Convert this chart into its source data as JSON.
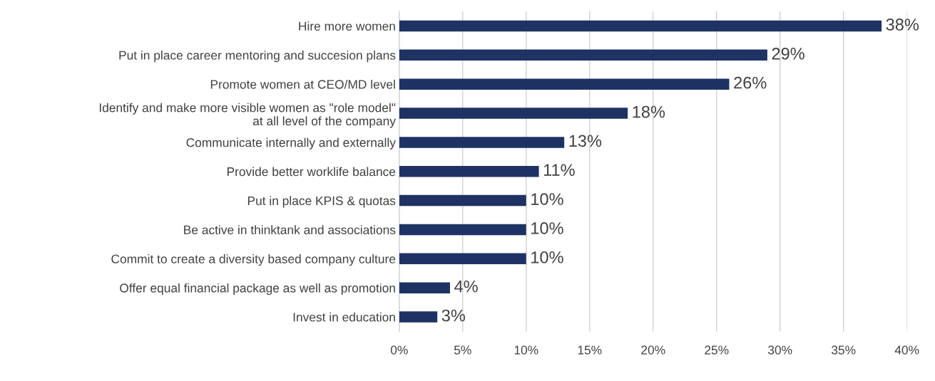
{
  "chart_data": {
    "type": "bar",
    "orientation": "horizontal",
    "categories": [
      "Hire more women",
      "Put in place career mentoring and succesion plans",
      "Promote women at CEO/MD level",
      "Identify and make more visible women as \"role model\"\nat all level of the company",
      "Communicate internally and externally",
      "Provide better worklife balance",
      "Put in place KPIS & quotas",
      "Be active in thinktank and associations",
      "Commit to create a diversity based company culture",
      "Offer equal financial package as well as promotion",
      "Invest in education"
    ],
    "values": [
      38,
      29,
      26,
      18,
      13,
      11,
      10,
      10,
      10,
      4,
      3
    ],
    "value_labels": [
      "38%",
      "29%",
      "26%",
      "18%",
      "13%",
      "11%",
      "10%",
      "10%",
      "10%",
      "4%",
      "3%"
    ],
    "color": "#1f3264",
    "xlim": [
      0,
      40
    ],
    "xticks": [
      {
        "value": 0,
        "label": "0%"
      },
      {
        "value": 5,
        "label": "5%"
      },
      {
        "value": 10,
        "label": "10%"
      },
      {
        "value": 15,
        "label": "15%"
      },
      {
        "value": 20,
        "label": "20%"
      },
      {
        "value": 25,
        "label": "25%"
      },
      {
        "value": 30,
        "label": "30%"
      },
      {
        "value": 35,
        "label": "35%"
      },
      {
        "value": 40,
        "label": "40%"
      }
    ],
    "grid": "x"
  }
}
